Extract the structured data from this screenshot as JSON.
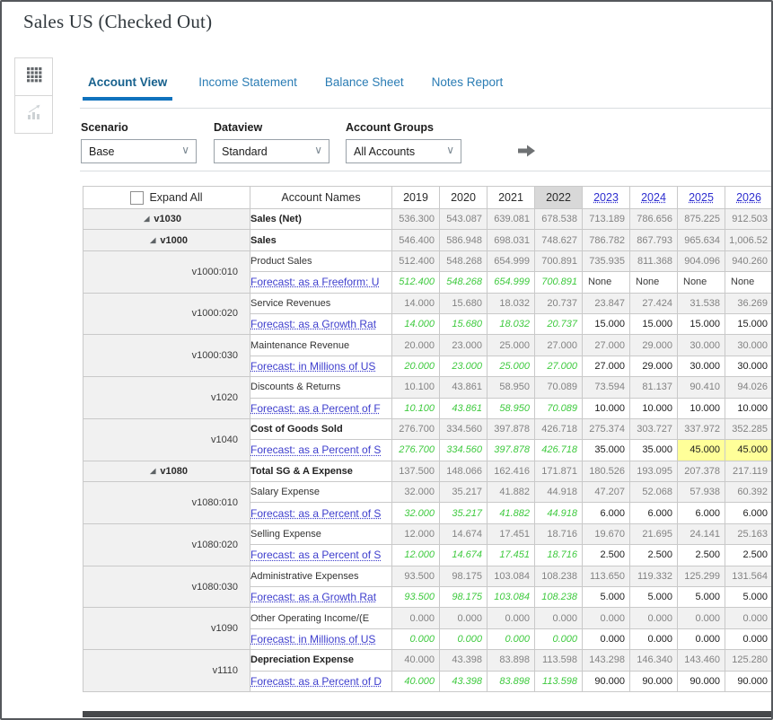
{
  "window": {
    "title": "Sales US (Checked Out)"
  },
  "icons": {
    "expanded_triangle": "◢",
    "dropdown_chevron": "∨"
  },
  "colors": {
    "accent_blue": "#0f72bd",
    "forecast_link_blue": "#3e3ecd",
    "historical_green": "#3fca3f",
    "highlight_yellow": "#ffff99",
    "selected_year_bg": "#d8d8d8"
  },
  "tabs": [
    {
      "label": "Account View",
      "active": true
    },
    {
      "label": "Income Statement",
      "active": false
    },
    {
      "label": "Balance Sheet",
      "active": false
    },
    {
      "label": "Notes Report",
      "active": false
    }
  ],
  "filters": [
    {
      "label": "Scenario",
      "value": "Base"
    },
    {
      "label": "Dataview",
      "value": "Standard"
    },
    {
      "label": "Account Groups",
      "value": "All Accounts"
    }
  ],
  "table": {
    "expand_all_label": "Expand All",
    "account_names_header": "Account Names",
    "years": [
      {
        "label": "2019",
        "link": false,
        "selected": false
      },
      {
        "label": "2020",
        "link": false,
        "selected": false
      },
      {
        "label": "2021",
        "link": false,
        "selected": false
      },
      {
        "label": "2022",
        "link": false,
        "selected": true
      },
      {
        "label": "2023",
        "link": true,
        "selected": false
      },
      {
        "label": "2024",
        "link": true,
        "selected": false
      },
      {
        "label": "2025",
        "link": true,
        "selected": false
      },
      {
        "label": "2026",
        "link": true,
        "selected": false
      }
    ],
    "rows": [
      {
        "id": "v1030",
        "level": 1,
        "expandable": true,
        "id_bold": true,
        "name": "Sales (Net)",
        "name_bold": true,
        "values": [
          "536.300",
          "543.087",
          "639.081",
          "678.538",
          "713.189",
          "786.656",
          "875.225",
          "912.503"
        ]
      },
      {
        "id": "v1000",
        "level": 2,
        "expandable": true,
        "id_bold": true,
        "name": "Sales",
        "name_bold": true,
        "values": [
          "546.400",
          "586.948",
          "698.031",
          "748.627",
          "786.782",
          "867.793",
          "965.634",
          "1,006.52"
        ]
      },
      {
        "id": "v1000:010",
        "level": 3,
        "expandable": false,
        "id_bold": false,
        "name": "Product Sales",
        "name_bold": false,
        "values": [
          "512.400",
          "548.268",
          "654.999",
          "700.891",
          "735.935",
          "811.368",
          "904.096",
          "940.260"
        ],
        "forecast": {
          "link": "Forecast: as a Freeform: U",
          "hist": [
            "512.400",
            "548.268",
            "654.999",
            "700.891"
          ],
          "fc": [
            "None",
            "None",
            "None",
            "None"
          ],
          "highlight": [
            false,
            false,
            false,
            false
          ]
        }
      },
      {
        "id": "v1000:020",
        "level": 3,
        "expandable": false,
        "id_bold": false,
        "name": "Service Revenues",
        "name_bold": false,
        "values": [
          "14.000",
          "15.680",
          "18.032",
          "20.737",
          "23.847",
          "27.424",
          "31.538",
          "36.269"
        ],
        "forecast": {
          "link": "Forecast: as a Growth Rat",
          "hist": [
            "14.000",
            "15.680",
            "18.032",
            "20.737"
          ],
          "fc": [
            "15.000",
            "15.000",
            "15.000",
            "15.000"
          ],
          "highlight": [
            false,
            false,
            false,
            false
          ]
        }
      },
      {
        "id": "v1000:030",
        "level": 3,
        "expandable": false,
        "id_bold": false,
        "name": "Maintenance Revenue",
        "name_bold": false,
        "values": [
          "20.000",
          "23.000",
          "25.000",
          "27.000",
          "27.000",
          "29.000",
          "30.000",
          "30.000"
        ],
        "forecast": {
          "link": "Forecast: in Millions of US",
          "hist": [
            "20.000",
            "23.000",
            "25.000",
            "27.000"
          ],
          "fc": [
            "27.000",
            "29.000",
            "30.000",
            "30.000"
          ],
          "highlight": [
            false,
            false,
            false,
            false
          ]
        }
      },
      {
        "id": "v1020",
        "level": 3,
        "expandable": false,
        "id_bold": false,
        "name": "Discounts & Returns",
        "name_bold": false,
        "values": [
          "10.100",
          "43.861",
          "58.950",
          "70.089",
          "73.594",
          "81.137",
          "90.410",
          "94.026"
        ],
        "forecast": {
          "link": "Forecast: as a Percent of F",
          "hist": [
            "10.100",
            "43.861",
            "58.950",
            "70.089"
          ],
          "fc": [
            "10.000",
            "10.000",
            "10.000",
            "10.000"
          ],
          "highlight": [
            false,
            false,
            false,
            false
          ]
        }
      },
      {
        "id": "v1040",
        "level": 3,
        "expandable": false,
        "id_bold": false,
        "name": "Cost of Goods Sold",
        "name_bold": true,
        "values": [
          "276.700",
          "334.560",
          "397.878",
          "426.718",
          "275.374",
          "303.727",
          "337.972",
          "352.285"
        ],
        "forecast": {
          "link": "Forecast: as a Percent of S",
          "hist": [
            "276.700",
            "334.560",
            "397.878",
            "426.718"
          ],
          "fc": [
            "35.000",
            "35.000",
            "45.000",
            "45.000"
          ],
          "highlight": [
            false,
            false,
            true,
            true
          ]
        }
      },
      {
        "id": "v1080",
        "level": 2,
        "expandable": true,
        "id_bold": true,
        "name": "Total SG & A Expense",
        "name_bold": true,
        "values": [
          "137.500",
          "148.066",
          "162.416",
          "171.871",
          "180.526",
          "193.095",
          "207.378",
          "217.119"
        ]
      },
      {
        "id": "v1080:010",
        "level": 3,
        "expandable": false,
        "id_bold": false,
        "name": "Salary Expense",
        "name_bold": false,
        "values": [
          "32.000",
          "35.217",
          "41.882",
          "44.918",
          "47.207",
          "52.068",
          "57.938",
          "60.392"
        ],
        "forecast": {
          "link": "Forecast: as a Percent of S",
          "hist": [
            "32.000",
            "35.217",
            "41.882",
            "44.918"
          ],
          "fc": [
            "6.000",
            "6.000",
            "6.000",
            "6.000"
          ],
          "highlight": [
            false,
            false,
            false,
            false
          ]
        }
      },
      {
        "id": "v1080:020",
        "level": 3,
        "expandable": false,
        "id_bold": false,
        "name": "Selling Expense",
        "name_bold": false,
        "values": [
          "12.000",
          "14.674",
          "17.451",
          "18.716",
          "19.670",
          "21.695",
          "24.141",
          "25.163"
        ],
        "forecast": {
          "link": "Forecast: as a Percent of S",
          "hist": [
            "12.000",
            "14.674",
            "17.451",
            "18.716"
          ],
          "fc": [
            "2.500",
            "2.500",
            "2.500",
            "2.500"
          ],
          "highlight": [
            false,
            false,
            false,
            false
          ]
        }
      },
      {
        "id": "v1080:030",
        "level": 3,
        "expandable": false,
        "id_bold": false,
        "name": "Administrative Expenses",
        "name_bold": false,
        "values": [
          "93.500",
          "98.175",
          "103.084",
          "108.238",
          "113.650",
          "119.332",
          "125.299",
          "131.564"
        ],
        "forecast": {
          "link": "Forecast: as a Growth Rat",
          "hist": [
            "93.500",
            "98.175",
            "103.084",
            "108.238"
          ],
          "fc": [
            "5.000",
            "5.000",
            "5.000",
            "5.000"
          ],
          "highlight": [
            false,
            false,
            false,
            false
          ]
        }
      },
      {
        "id": "v1090",
        "level": 3,
        "expandable": false,
        "id_bold": false,
        "name": "Other Operating Income/(E",
        "name_bold": false,
        "values": [
          "0.000",
          "0.000",
          "0.000",
          "0.000",
          "0.000",
          "0.000",
          "0.000",
          "0.000"
        ],
        "forecast": {
          "link": "Forecast: in Millions of US",
          "hist": [
            "0.000",
            "0.000",
            "0.000",
            "0.000"
          ],
          "fc": [
            "0.000",
            "0.000",
            "0.000",
            "0.000"
          ],
          "highlight": [
            false,
            false,
            false,
            false
          ]
        }
      },
      {
        "id": "v1110",
        "level": 3,
        "expandable": false,
        "id_bold": false,
        "name": "Depreciation Expense",
        "name_bold": true,
        "values": [
          "40.000",
          "43.398",
          "83.898",
          "113.598",
          "143.298",
          "146.340",
          "143.460",
          "125.280"
        ],
        "forecast": {
          "link": "Forecast: as a Percent of D",
          "hist": [
            "40.000",
            "43.398",
            "83.898",
            "113.598"
          ],
          "fc": [
            "90.000",
            "90.000",
            "90.000",
            "90.000"
          ],
          "highlight": [
            false,
            false,
            false,
            false
          ]
        }
      }
    ]
  }
}
